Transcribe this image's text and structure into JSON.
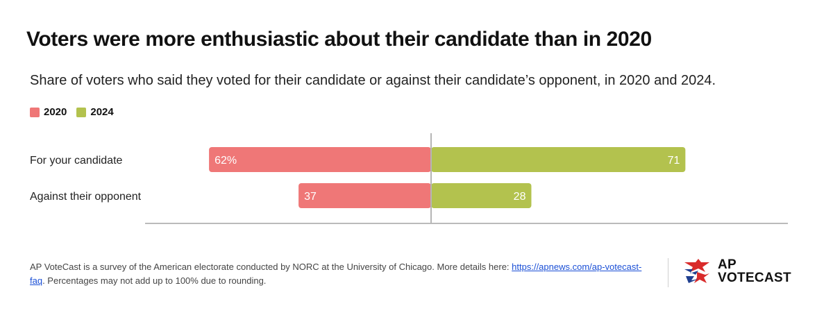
{
  "title": "Voters were more enthusiastic about their candidate than in 2020",
  "subtitle": "Share of voters who said they voted for their candidate or against their candidate’s opponent, in 2020 and 2024.",
  "legend": [
    {
      "name": "2020",
      "color": "#ef7777"
    },
    {
      "name": "2024",
      "color": "#b3c24e"
    }
  ],
  "chart_data": {
    "type": "bar",
    "orientation": "horizontal-diverging",
    "categories": [
      "For your candidate",
      "Against their opponent"
    ],
    "series": [
      {
        "name": "2020",
        "values": [
          62,
          37
        ],
        "labels": [
          "62%",
          "37"
        ],
        "color": "#ef7777",
        "direction": "left"
      },
      {
        "name": "2024",
        "values": [
          71,
          28
        ],
        "labels": [
          "71",
          "28"
        ],
        "color": "#b3c24e",
        "direction": "right"
      }
    ],
    "xlim": [
      0,
      75
    ],
    "grid": false,
    "legend_position": "top-left"
  },
  "footnote": {
    "text_before": "AP VoteCast is a survey of the American electorate conducted by NORC at the University of Chicago. More details here: ",
    "link_text": "https://apnews.com/ap-votecast-faq",
    "text_after": ". Percentages may not add up to 100% due to rounding."
  },
  "logo": {
    "line1": "AP",
    "line2": "VOTECAST"
  }
}
